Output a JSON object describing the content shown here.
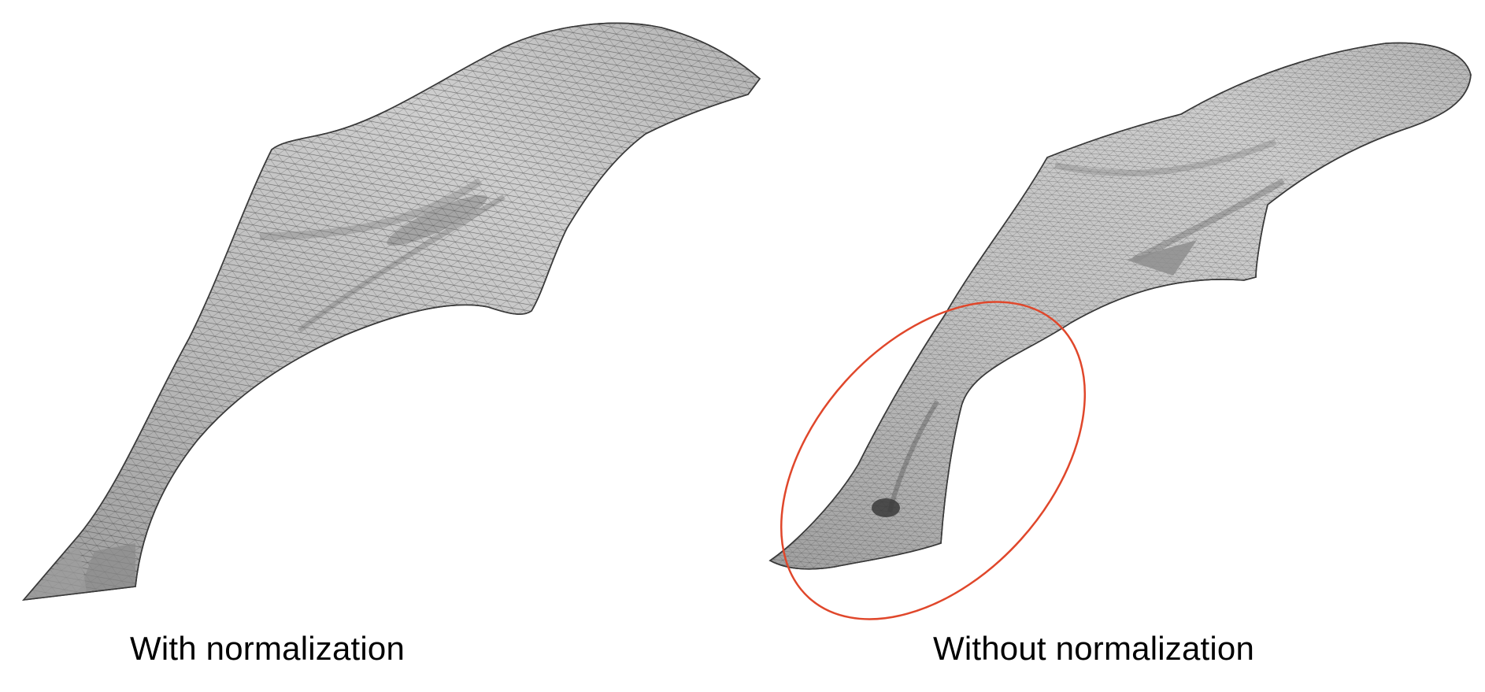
{
  "captions": {
    "left": "With normalization",
    "right": "Without normalization"
  },
  "colors": {
    "mesh_fill": "#c4c4c4",
    "mesh_shadow": "#8e8e8e",
    "mesh_line": "#3c3c3c",
    "highlight_ellipse": "#e0472b"
  }
}
